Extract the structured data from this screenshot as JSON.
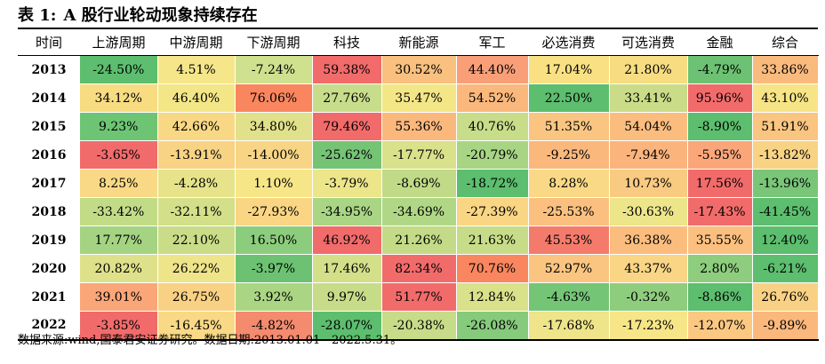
{
  "title": {
    "label": "表 1:",
    "text": "A 股行业轮动现象持续存在"
  },
  "table": {
    "headers": [
      "时间",
      "上游周期",
      "中游周期",
      "下游周期",
      "科技",
      "新能源",
      "军工",
      "必选消费",
      "可选消费",
      "金融",
      "综合"
    ],
    "rows": [
      {
        "year": "2013",
        "cells": [
          "-24.50%",
          "4.51%",
          "-7.24%",
          "59.38%",
          "30.52%",
          "44.40%",
          "17.04%",
          "21.80%",
          "-4.79%",
          "33.86%"
        ],
        "colors": [
          "#5cbe6e",
          "#f6e68a",
          "#cfe08e",
          "#f26b6b",
          "#f9c07f",
          "#f99f78",
          "#f9e183",
          "#f7dc82",
          "#6cc272",
          "#f9ba7d"
        ]
      },
      {
        "year": "2014",
        "cells": [
          "34.12%",
          "46.40%",
          "76.06%",
          "27.76%",
          "35.47%",
          "54.52%",
          "22.50%",
          "33.41%",
          "95.96%",
          "43.10%"
        ],
        "colors": [
          "#f7dc82",
          "#f3e687",
          "#f9865f",
          "#c7dd8b",
          "#f3e687",
          "#fbb87d",
          "#5cbe6e",
          "#cadc88",
          "#f26b6b",
          "#f6e486"
        ]
      },
      {
        "year": "2015",
        "cells": [
          "9.23%",
          "42.66%",
          "34.80%",
          "79.46%",
          "55.36%",
          "40.76%",
          "51.35%",
          "54.04%",
          "-8.90%",
          "51.91%"
        ],
        "colors": [
          "#6dc574",
          "#f9d885",
          "#e0e18a",
          "#f26b6b",
          "#fbb87d",
          "#c8dd8a",
          "#f9c581",
          "#fbbd7e",
          "#5cbe6e",
          "#f9c581"
        ]
      },
      {
        "year": "2016",
        "cells": [
          "-3.65%",
          "-13.91%",
          "-14.00%",
          "-25.62%",
          "-17.77%",
          "-20.79%",
          "-9.25%",
          "-7.94%",
          "-5.95%",
          "-13.82%"
        ],
        "colors": [
          "#f26b6b",
          "#f8d384",
          "#f8d585",
          "#75c476",
          "#d9e18b",
          "#a7d584",
          "#fbb87d",
          "#fbb47c",
          "#fba679",
          "#f8d384"
        ]
      },
      {
        "year": "2017",
        "cells": [
          "8.25%",
          "-4.28%",
          "1.10%",
          "-3.79%",
          "-8.69%",
          "-18.72%",
          "8.28%",
          "10.73%",
          "17.56%",
          "-13.96%"
        ],
        "colors": [
          "#f9d986",
          "#e6e38a",
          "#f6e687",
          "#ece58a",
          "#c0da87",
          "#5cbe6e",
          "#f9d986",
          "#f9ca81",
          "#f26b6b",
          "#79c678"
        ]
      },
      {
        "year": "2018",
        "cells": [
          "-33.42%",
          "-32.11%",
          "-27.93%",
          "-34.95%",
          "-34.69%",
          "-27.39%",
          "-25.53%",
          "-30.63%",
          "-17.43%",
          "-41.45%"
        ],
        "colors": [
          "#c2db87",
          "#d4df8a",
          "#f9d584",
          "#a9d585",
          "#b0d786",
          "#f9d584",
          "#fbc07f",
          "#ece58a",
          "#f26b6b",
          "#5cbe6e"
        ]
      },
      {
        "year": "2019",
        "cells": [
          "17.77%",
          "22.10%",
          "16.50%",
          "46.92%",
          "21.26%",
          "21.63%",
          "45.53%",
          "36.38%",
          "35.55%",
          "12.40%"
        ],
        "colors": [
          "#a4d482",
          "#cadc88",
          "#8ccd7d",
          "#f26b6b",
          "#c3da87",
          "#c7dc88",
          "#f47b6b",
          "#fbbd7e",
          "#fbc07f",
          "#5cbe6e"
        ]
      },
      {
        "year": "2020",
        "cells": [
          "20.82%",
          "26.22%",
          "-3.97%",
          "17.46%",
          "82.34%",
          "70.76%",
          "52.97%",
          "43.37%",
          "2.80%",
          "-6.21%"
        ],
        "colors": [
          "#dfe18a",
          "#eee48a",
          "#6cc272",
          "#d4df8a",
          "#f26b6b",
          "#f9865f",
          "#f9c581",
          "#f9d585",
          "#8ecd7e",
          "#5cbe6e"
        ]
      },
      {
        "year": "2021",
        "cells": [
          "39.01%",
          "26.75%",
          "3.92%",
          "9.97%",
          "51.77%",
          "12.84%",
          "-4.63%",
          "-0.32%",
          "-8.86%",
          "26.76%"
        ],
        "colors": [
          "#fba679",
          "#f9d184",
          "#aad683",
          "#c7dc88",
          "#f26b6b",
          "#d9e18b",
          "#74c576",
          "#8fcd7e",
          "#5cbe6e",
          "#f9d184"
        ]
      },
      {
        "year": "2022",
        "cells": [
          "-3.85%",
          "-16.45%",
          "-4.82%",
          "-28.07%",
          "-20.38%",
          "-26.08%",
          "-17.68%",
          "-17.23%",
          "-12.07%",
          "-9.89%"
        ],
        "colors": [
          "#f26b6b",
          "#f9d986",
          "#f48a6e",
          "#5cbe6e",
          "#c6dc88",
          "#86ca7b",
          "#eee48a",
          "#f6e687",
          "#fbc881",
          "#fbb87d"
        ]
      }
    ]
  },
  "source": "数据来源:wind,国泰君安证券研究。数据日期:2013.01.01 - 2022.5.31。"
}
